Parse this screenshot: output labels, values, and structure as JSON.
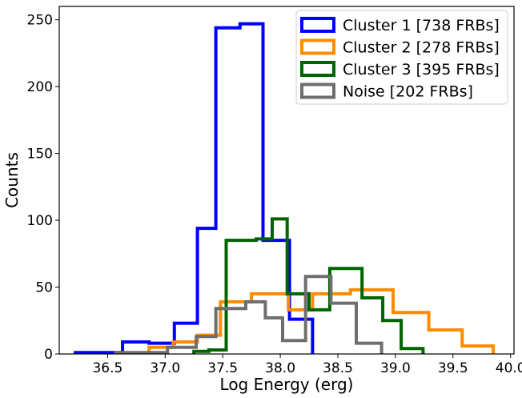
{
  "chart_data": {
    "type": "histogram",
    "xlabel": "Log Energy (erg)",
    "ylabel": "Counts",
    "xlim": [
      36.08,
      40.03
    ],
    "ylim": [
      0,
      260
    ],
    "xticks": [
      36.5,
      37.0,
      37.5,
      38.0,
      38.5,
      39.0,
      39.5,
      40.0
    ],
    "xtick_labels": [
      "36.5",
      "37.0",
      "37.5",
      "38.0",
      "38.5",
      "39.0",
      "39.5",
      "40.0"
    ],
    "yticks": [
      0,
      50,
      100,
      150,
      200,
      250
    ],
    "ytick_labels": [
      "0",
      "50",
      "100",
      "150",
      "200",
      "250"
    ],
    "legend_position": "top-right",
    "series": [
      {
        "name": "Cluster 1 [738 FRBs]",
        "color": "#0000ff",
        "edges": [
          36.22,
          36.57,
          36.63,
          36.86,
          37.08,
          37.28,
          37.44,
          37.65,
          37.85,
          38.08,
          38.28
        ],
        "counts": [
          1,
          1,
          9,
          8,
          23,
          94,
          244,
          247,
          85,
          26
        ]
      },
      {
        "name": "Cluster 2 [278 FRBs]",
        "color": "#ff8c00",
        "edges": [
          36.86,
          37.07,
          37.28,
          37.48,
          37.75,
          38.07,
          38.28,
          38.61,
          38.98,
          39.29,
          39.58,
          39.85
        ],
        "counts": [
          5,
          9,
          14,
          39,
          45,
          33,
          45,
          48,
          31,
          18,
          6
        ]
      },
      {
        "name": "Cluster 3 [395 FRBs]",
        "color": "#006400",
        "edges": [
          37.25,
          37.38,
          37.53,
          37.79,
          37.93,
          38.06,
          38.25,
          38.43,
          38.71,
          38.89,
          39.05,
          39.24
        ],
        "counts": [
          2,
          3,
          85,
          86,
          101,
          45,
          33,
          64,
          42,
          25,
          4
        ]
      },
      {
        "name": "Noise [202 FRBs]",
        "color": "#6e6e6e",
        "edges": [
          36.57,
          36.81,
          37.02,
          37.27,
          37.44,
          37.7,
          37.87,
          38.02,
          38.22,
          38.44,
          38.66,
          38.88
        ],
        "counts": [
          1,
          1,
          5,
          13,
          34,
          39,
          27,
          10,
          58,
          38,
          8
        ]
      }
    ]
  }
}
